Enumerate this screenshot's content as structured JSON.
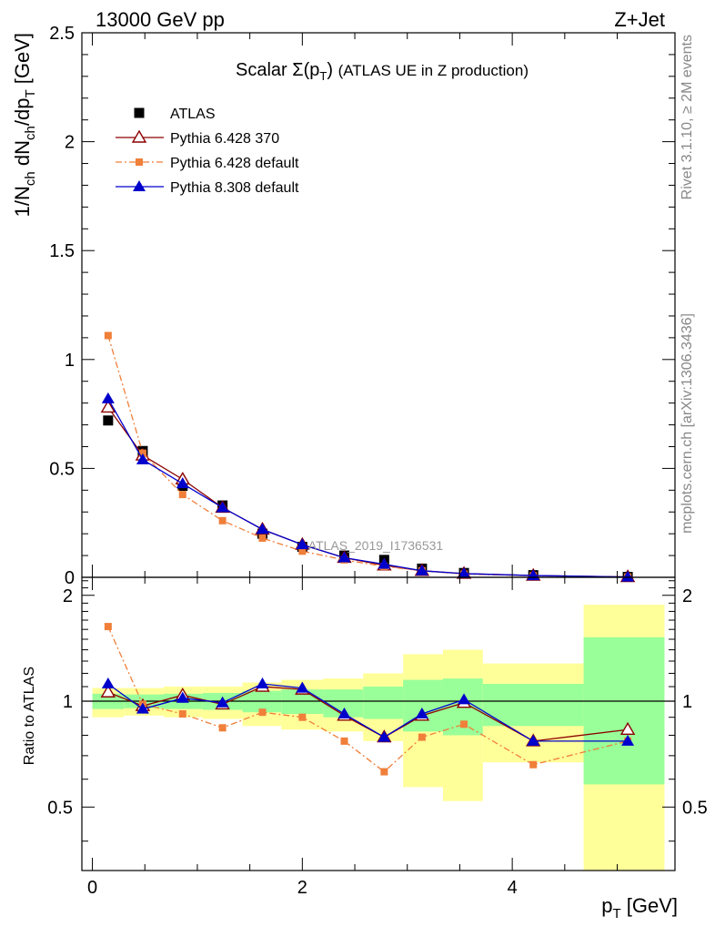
{
  "header": {
    "left": "13000 GeV pp",
    "right": "Z+Jet"
  },
  "side": {
    "rivet": "Rivet 3.1.10, ≥ 2M events",
    "mcplots": "mcplots.cern.ch [arXiv:1306.3436]"
  },
  "watermark": "ATLAS_2019_I1736531",
  "chart_data": [
    {
      "type": "scatter",
      "title": "Scalar Σ(p_T) (ATLAS UE in Z production)",
      "ylabel": "1/N_ch dN_ch/dp_T [GeV]",
      "xlim": [
        -0.1,
        5.55
      ],
      "ylim": [
        0,
        2.5
      ],
      "yticks": [
        "0",
        "0.5",
        "1",
        "1.5",
        "2",
        "2.5"
      ],
      "x": [
        0.15,
        0.48,
        0.86,
        1.24,
        1.62,
        2.0,
        2.4,
        2.78,
        3.14,
        3.54,
        4.2,
        5.1
      ],
      "series": [
        {
          "name": "ATLAS",
          "color": "#000000",
          "marker": "square",
          "values": [
            0.72,
            0.58,
            0.42,
            0.33,
            0.2,
            0.14,
            0.1,
            0.08,
            0.04,
            0.02,
            0.01,
            0.002
          ]
        },
        {
          "name": "Pythia 6.428 370",
          "color": "#8b0000",
          "marker": "open-triangle",
          "values": [
            0.78,
            0.56,
            0.45,
            0.32,
            0.22,
            0.15,
            0.09,
            0.055,
            0.03,
            0.017,
            0.008,
            0.002
          ]
        },
        {
          "name": "Pythia 6.428 default",
          "color": "#f07f3a",
          "marker": "small-square",
          "dash": "dashdot",
          "values": [
            1.11,
            0.57,
            0.38,
            0.26,
            0.18,
            0.12,
            0.08,
            0.05,
            0.03,
            0.015,
            0.007,
            0.0015
          ]
        },
        {
          "name": "Pythia 8.308 default",
          "color": "#0000cc",
          "marker": "filled-triangle",
          "values": [
            0.82,
            0.54,
            0.43,
            0.32,
            0.22,
            0.15,
            0.09,
            0.06,
            0.03,
            0.017,
            0.008,
            0.0015
          ]
        }
      ],
      "legend": "top-left"
    },
    {
      "type": "scatter",
      "ylabel": "Ratio to ATLAS",
      "xlabel": "p_T [GeV]",
      "xlim": [
        -0.1,
        5.55
      ],
      "ylim": [
        0.33,
        2.25
      ],
      "xticks": [
        "0",
        "2",
        "4"
      ],
      "yticks": [
        "0.5",
        "1",
        "2"
      ],
      "reference": 1,
      "bands": [
        {
          "x0": 0.0,
          "x1": 0.3,
          "yellow": [
            0.9,
            1.09
          ],
          "green": [
            0.95,
            1.05
          ]
        },
        {
          "x0": 0.3,
          "x1": 0.68,
          "yellow": [
            0.91,
            1.09
          ],
          "green": [
            0.955,
            1.045
          ]
        },
        {
          "x0": 0.68,
          "x1": 1.05,
          "yellow": [
            0.9,
            1.1
          ],
          "green": [
            0.95,
            1.05
          ]
        },
        {
          "x0": 1.05,
          "x1": 1.43,
          "yellow": [
            0.89,
            1.1
          ],
          "green": [
            0.945,
            1.055
          ]
        },
        {
          "x0": 1.43,
          "x1": 1.8,
          "yellow": [
            0.85,
            1.13
          ],
          "green": [
            0.93,
            1.07
          ]
        },
        {
          "x0": 1.8,
          "x1": 2.2,
          "yellow": [
            0.83,
            1.15
          ],
          "green": [
            0.92,
            1.08
          ]
        },
        {
          "x0": 2.2,
          "x1": 2.58,
          "yellow": [
            0.82,
            1.16
          ],
          "green": [
            0.9,
            1.08
          ]
        },
        {
          "x0": 2.58,
          "x1": 2.96,
          "yellow": [
            0.77,
            1.2
          ],
          "green": [
            0.89,
            1.1
          ]
        },
        {
          "x0": 2.96,
          "x1": 3.34,
          "yellow": [
            0.57,
            1.36
          ],
          "green": [
            0.82,
            1.15
          ]
        },
        {
          "x0": 3.34,
          "x1": 3.72,
          "yellow": [
            0.52,
            1.4
          ],
          "green": [
            0.8,
            1.16
          ]
        },
        {
          "x0": 3.72,
          "x1": 4.68,
          "yellow": [
            0.67,
            1.28
          ],
          "green": [
            0.85,
            1.12
          ]
        },
        {
          "x0": 4.68,
          "x1": 5.45,
          "yellow": [
            0.33,
            1.88
          ],
          "green": [
            0.58,
            1.52
          ]
        }
      ],
      "x": [
        0.15,
        0.48,
        0.86,
        1.24,
        1.62,
        2.0,
        2.4,
        2.78,
        3.14,
        3.54,
        4.2,
        5.1
      ],
      "series": [
        {
          "name": "Pythia 6.428 370",
          "color": "#8b0000",
          "marker": "open-triangle",
          "values": [
            1.06,
            0.97,
            1.04,
            0.98,
            1.1,
            1.08,
            0.91,
            0.79,
            0.91,
            0.99,
            0.77,
            0.83
          ]
        },
        {
          "name": "Pythia 6.428 default",
          "color": "#f07f3a",
          "marker": "small-square",
          "dash": "dashdot",
          "values": [
            1.63,
            0.98,
            0.92,
            0.84,
            0.93,
            0.9,
            0.77,
            0.63,
            0.79,
            0.86,
            0.66,
            0.77
          ]
        },
        {
          "name": "Pythia 8.308 default",
          "color": "#0000cc",
          "marker": "filled-triangle",
          "values": [
            1.12,
            0.95,
            1.02,
            0.99,
            1.12,
            1.09,
            0.92,
            0.79,
            0.92,
            1.01,
            0.77,
            0.77
          ]
        }
      ]
    }
  ]
}
